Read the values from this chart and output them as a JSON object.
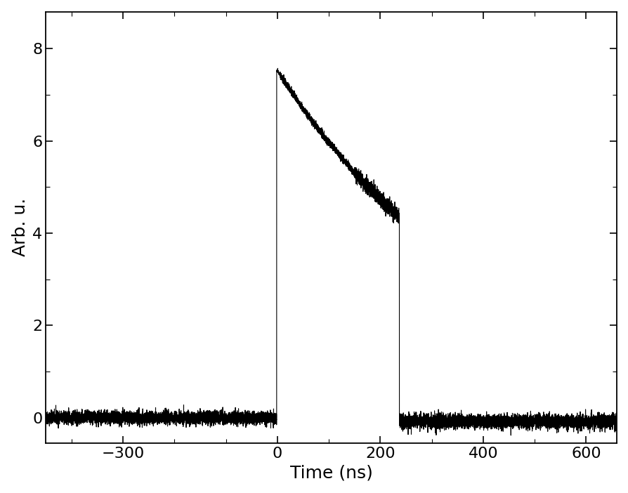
{
  "title": "",
  "xlabel": "Time (ns)",
  "ylabel": "Arb. u.",
  "xlim": [
    -450,
    660
  ],
  "ylim": [
    -0.55,
    8.8
  ],
  "xticks": [
    -300,
    0,
    200,
    400,
    600
  ],
  "yticks": [
    0,
    2,
    4,
    6,
    8
  ],
  "background_color": "#ffffff",
  "line_color": "#000000",
  "line_width": 0.8,
  "noise_amplitude_baseline": 0.07,
  "noise_amplitude_pulse": 0.04,
  "peak_value": 7.52,
  "flat_value": 4.42,
  "pulse_start": 0,
  "pulse_end": 237,
  "tau_fit": 433.0,
  "xlabel_fontsize": 18,
  "ylabel_fontsize": 18,
  "tick_fontsize": 16
}
